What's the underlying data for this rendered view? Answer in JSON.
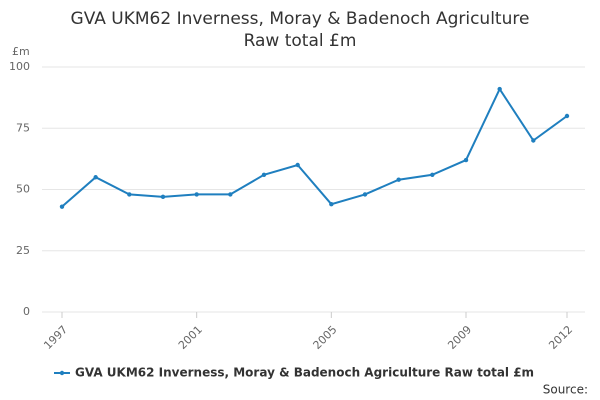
{
  "chart_data": {
    "type": "line",
    "title": "GVA UKM62 Inverness, Moray & Badenoch Agriculture Raw total £m",
    "y_label": "£m",
    "source": "Source:",
    "x": [
      1997,
      1998,
      1999,
      2000,
      2001,
      2002,
      2003,
      2004,
      2005,
      2006,
      2007,
      2008,
      2009,
      2010,
      2011,
      2012
    ],
    "series": [
      {
        "name": "GVA UKM62 Inverness, Moray & Badenoch Agriculture Raw total £m",
        "color": "#1f7fbf",
        "values": [
          43,
          55,
          48,
          47,
          48,
          48,
          56,
          60,
          44,
          48,
          54,
          56,
          62,
          91,
          70,
          80
        ]
      }
    ],
    "xlim": [
      1997,
      2012
    ],
    "xticks": [
      1997,
      2001,
      2005,
      2009,
      2012
    ],
    "ylim": [
      0,
      100
    ],
    "yticks": [
      0,
      25,
      50,
      75,
      100
    ],
    "grid": true
  }
}
